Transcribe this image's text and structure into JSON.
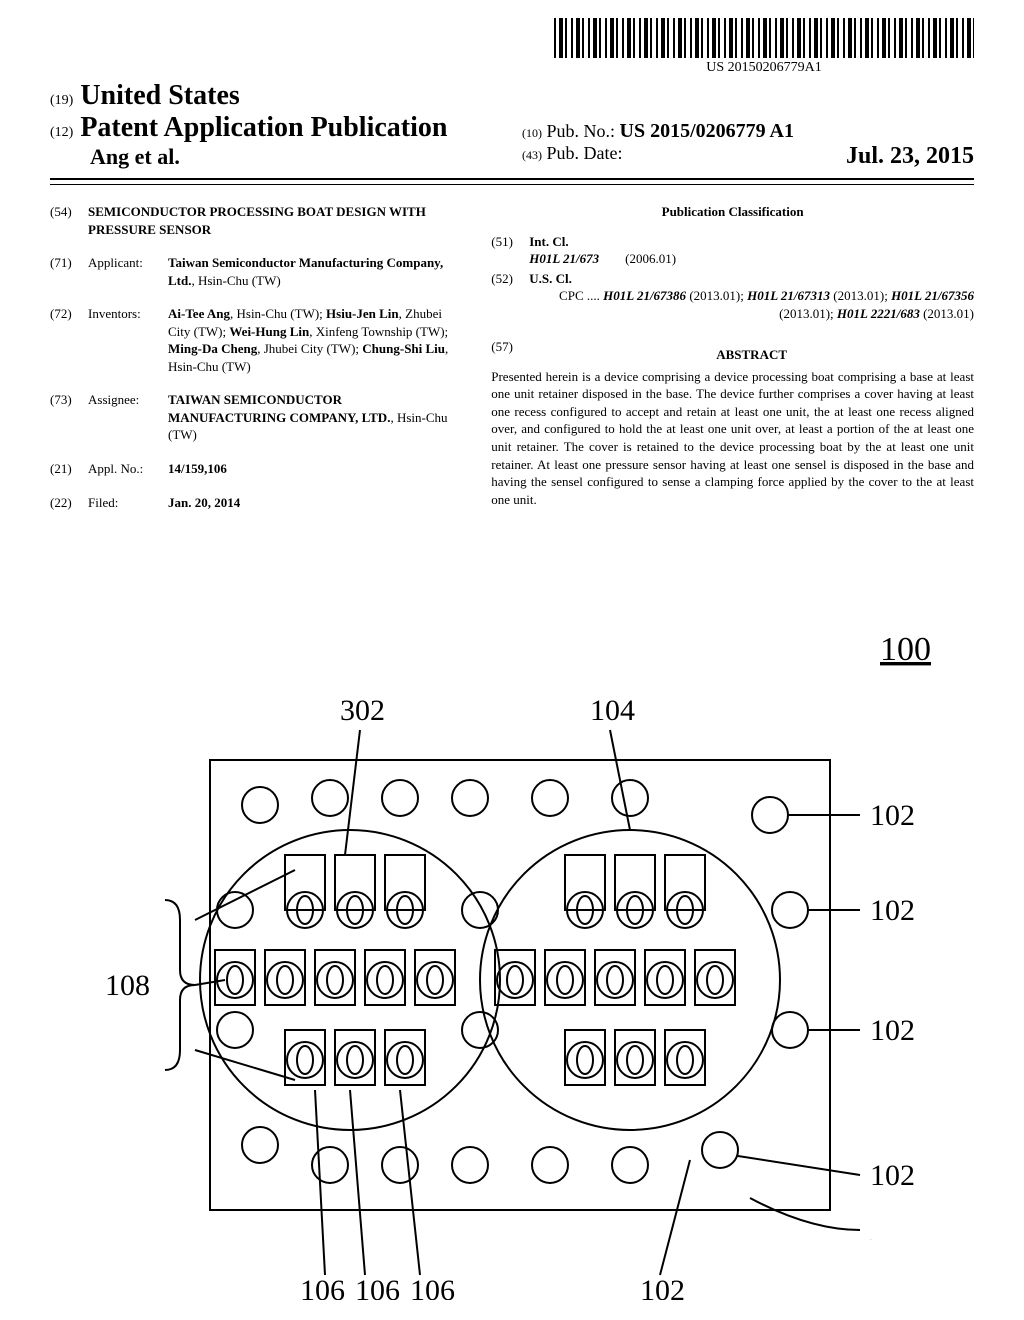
{
  "barcode_text": "US 20150206779A1",
  "country_num": "(19)",
  "country": "United States",
  "pub_title_num": "(12)",
  "pub_title": "Patent Application Publication",
  "authors_etal": "Ang et al.",
  "pubno_num": "(10)",
  "pubno_label": "Pub. No.:",
  "pubno_val": "US 2015/0206779 A1",
  "pubdate_num": "(43)",
  "pubdate_label": "Pub. Date:",
  "pubdate_val": "Jul. 23, 2015",
  "title_code": "(54)",
  "title_text": "SEMICONDUCTOR PROCESSING BOAT DESIGN WITH PRESSURE SENSOR",
  "applicant_code": "(71)",
  "applicant_label": "Applicant:",
  "applicant_value": "Taiwan Semiconductor Manufacturing Company, Ltd.",
  "applicant_loc": ", Hsin-Chu (TW)",
  "inventors_code": "(72)",
  "inventors_label": "Inventors:",
  "inventors_value": "Ai-Tee Ang, Hsin-Chu (TW); Hsiu-Jen Lin, Zhubei City (TW); Wei-Hung Lin, Xinfeng Township (TW); Ming-Da Cheng, Jhubei City (TW); Chung-Shi Liu, Hsin-Chu (TW)",
  "assignee_code": "(73)",
  "assignee_label": "Assignee:",
  "assignee_value": "TAIWAN SEMICONDUCTOR MANUFACTURING COMPANY, LTD.",
  "assignee_loc": ", Hsin-Chu (TW)",
  "applno_code": "(21)",
  "applno_label": "Appl. No.:",
  "applno_value": "14/159,106",
  "filed_code": "(22)",
  "filed_label": "Filed:",
  "filed_value": "Jan. 20, 2014",
  "classif_title": "Publication Classification",
  "intcl_code": "(51)",
  "intcl_label": "Int. Cl.",
  "intcl_value": "H01L 21/673",
  "intcl_year": "(2006.01)",
  "uscl_code": "(52)",
  "uscl_label": "U.S. Cl.",
  "uscl_value": "CPC .... H01L 21/67386 (2013.01); H01L 21/67313 (2013.01); H01L 21/67356 (2013.01); H01L 2221/683 (2013.01)",
  "abstract_code": "(57)",
  "abstract_label": "ABSTRACT",
  "abstract_text": "Presented herein is a device comprising a device processing boat comprising a base at least one unit retainer disposed in the base. The device further comprises a cover having at least one recess configured to accept and retain at least one unit, the at least one recess aligned over, and configured to hold the at least one unit over, at least a portion of the at least one unit retainer. The cover is retained to the device processing boat by the at least one unit retainer. At least one pressure sensor having at least one sensel is disposed in the base and having the sensel configured to sense a clamping force applied by the cover to the at least one unit.",
  "figure": {
    "ref_100": "100",
    "ref_302": "302",
    "ref_104": "104",
    "ref_108": "108",
    "ref_102": "102",
    "ref_106": "106",
    "stroke": "#000000",
    "fill": "#ffffff",
    "stroke_width": 2
  }
}
